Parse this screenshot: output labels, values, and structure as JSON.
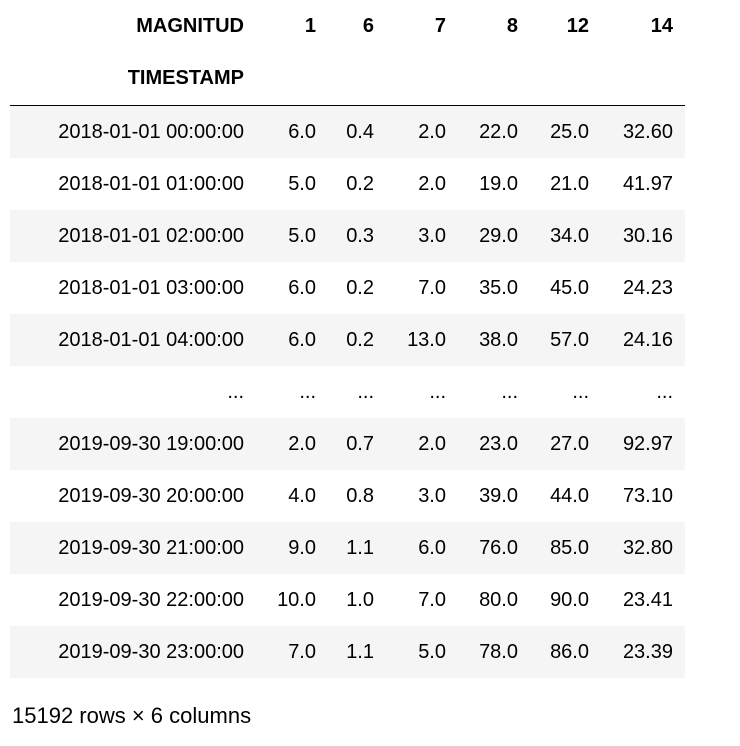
{
  "header": {
    "columns_label": "MAGNITUD",
    "columns": [
      "1",
      "6",
      "7",
      "8",
      "12",
      "14"
    ],
    "index_label": "TIMESTAMP"
  },
  "rows": [
    {
      "index": "2018-01-01 00:00:00",
      "values": [
        "6.0",
        "0.4",
        "2.0",
        "22.0",
        "25.0",
        "32.60"
      ]
    },
    {
      "index": "2018-01-01 01:00:00",
      "values": [
        "5.0",
        "0.2",
        "2.0",
        "19.0",
        "21.0",
        "41.97"
      ]
    },
    {
      "index": "2018-01-01 02:00:00",
      "values": [
        "5.0",
        "0.3",
        "3.0",
        "29.0",
        "34.0",
        "30.16"
      ]
    },
    {
      "index": "2018-01-01 03:00:00",
      "values": [
        "6.0",
        "0.2",
        "7.0",
        "35.0",
        "45.0",
        "24.23"
      ]
    },
    {
      "index": "2018-01-01 04:00:00",
      "values": [
        "6.0",
        "0.2",
        "13.0",
        "38.0",
        "57.0",
        "24.16"
      ]
    },
    {
      "index": "...",
      "values": [
        "...",
        "...",
        "...",
        "...",
        "...",
        "..."
      ]
    },
    {
      "index": "2019-09-30 19:00:00",
      "values": [
        "2.0",
        "0.7",
        "2.0",
        "23.0",
        "27.0",
        "92.97"
      ]
    },
    {
      "index": "2019-09-30 20:00:00",
      "values": [
        "4.0",
        "0.8",
        "3.0",
        "39.0",
        "44.0",
        "73.10"
      ]
    },
    {
      "index": "2019-09-30 21:00:00",
      "values": [
        "9.0",
        "1.1",
        "6.0",
        "76.0",
        "85.0",
        "32.80"
      ]
    },
    {
      "index": "2019-09-30 22:00:00",
      "values": [
        "10.0",
        "1.0",
        "7.0",
        "80.0",
        "90.0",
        "23.41"
      ]
    },
    {
      "index": "2019-09-30 23:00:00",
      "values": [
        "7.0",
        "1.1",
        "5.0",
        "78.0",
        "86.0",
        "23.39"
      ]
    }
  ],
  "footer": {
    "shape_text": "15192 rows × 6 columns"
  }
}
